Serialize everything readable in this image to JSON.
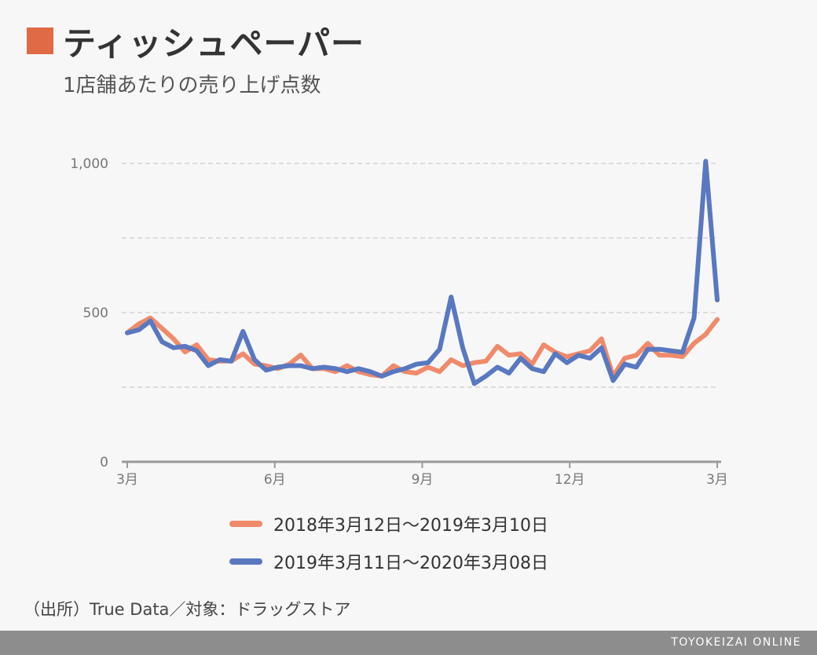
{
  "header": {
    "title": "ティッシュペーパー",
    "subtitle": "1店舗あたりの売り上げ点数",
    "accent_color": "#e06a45"
  },
  "chart_data": {
    "type": "line",
    "title": "ティッシュペーパー",
    "subtitle": "1店舗あたりの売り上げ点数",
    "xlabel": "",
    "ylabel": "",
    "ylim": [
      0,
      1000
    ],
    "y_ticks": [
      {
        "value": 0,
        "label": "0"
      },
      {
        "value": 250,
        "label": ""
      },
      {
        "value": 500,
        "label": "500"
      },
      {
        "value": 750,
        "label": ""
      },
      {
        "value": 1000,
        "label": "1,000"
      }
    ],
    "x_ticks": [
      {
        "week": 0,
        "label": "3月"
      },
      {
        "week": 13,
        "label": "6月"
      },
      {
        "week": 26,
        "label": "9月"
      },
      {
        "week": 39,
        "label": "12月"
      },
      {
        "week": 52,
        "label": "3月"
      }
    ],
    "grid": true,
    "legend_position": "bottom",
    "series": [
      {
        "name": "2018年3月12日～2019年3月10日",
        "color": "#f08a6c",
        "values": [
          432,
          462,
          482,
          447,
          412,
          368,
          392,
          342,
          337,
          338,
          362,
          327,
          322,
          312,
          327,
          358,
          312,
          312,
          302,
          322,
          302,
          292,
          287,
          322,
          302,
          297,
          317,
          302,
          342,
          322,
          332,
          337,
          387,
          357,
          362,
          327,
          392,
          367,
          352,
          362,
          372,
          412,
          287,
          347,
          357,
          397,
          357,
          357,
          352,
          397,
          427,
          477
        ]
      },
      {
        "name": "2019年3月11日～2020年3月08日",
        "color": "#5a78c0",
        "values": [
          432,
          442,
          472,
          402,
          382,
          387,
          372,
          322,
          342,
          337,
          437,
          342,
          307,
          317,
          322,
          322,
          312,
          317,
          312,
          302,
          312,
          302,
          287,
          302,
          312,
          327,
          332,
          377,
          552,
          382,
          262,
          287,
          317,
          297,
          347,
          312,
          302,
          362,
          332,
          357,
          347,
          382,
          272,
          327,
          317,
          377,
          377,
          372,
          367,
          482,
          1007,
          542
        ]
      }
    ]
  },
  "legend": {
    "items": [
      {
        "label": "2018年3月12日～2019年3月10日",
        "color": "#f08a6c"
      },
      {
        "label": "2019年3月11日～2020年3月08日",
        "color": "#5a78c0"
      }
    ]
  },
  "source": "（出所）True Data／対象：ドラッグストア",
  "footer": "TOYOKEIZAI ONLINE"
}
